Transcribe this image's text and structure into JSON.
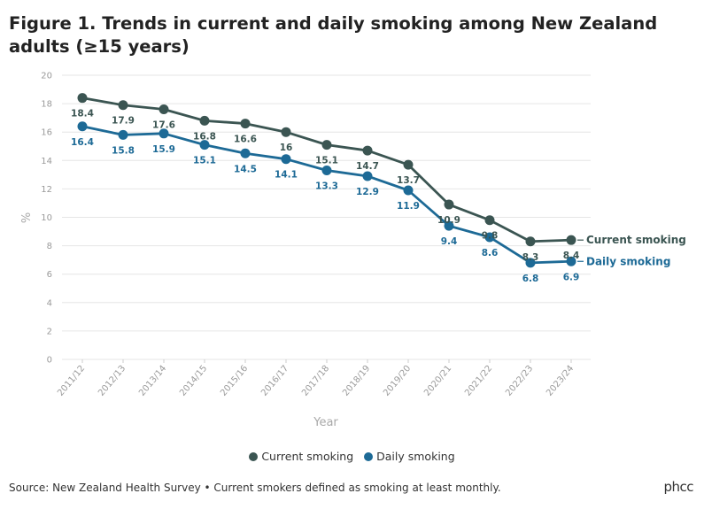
{
  "header": {
    "title": "Figure 1. Trends in current and daily smoking among New Zealand adults (≥15 years)"
  },
  "chart_data": {
    "type": "line",
    "title": "Figure 1. Trends in current and daily smoking among New Zealand adults (≥15 years)",
    "xlabel": "Year",
    "ylabel": "%",
    "ylim": [
      0,
      20
    ],
    "yticks": [
      0,
      2,
      4,
      6,
      8,
      10,
      12,
      14,
      16,
      18,
      20
    ],
    "categories": [
      "2011/12",
      "2012/13",
      "2013/14",
      "2014/15",
      "2015/16",
      "2016/17",
      "2017/18",
      "2018/19",
      "2019/20",
      "2020/21",
      "2021/22",
      "2022/23",
      "2023/24"
    ],
    "grid": true,
    "series": [
      {
        "name": "Current smoking",
        "color": "#3b5552",
        "values": [
          18.4,
          17.9,
          17.6,
          16.8,
          16.6,
          16,
          15.1,
          14.7,
          13.7,
          10.9,
          9.8,
          8.3,
          8.4
        ],
        "labels": [
          "18.4",
          "17.9",
          "17.6",
          "16.8",
          "16.6",
          "16",
          "15.1",
          "14.7",
          "13.7",
          "10.9",
          "9.8",
          "8.3",
          "8.4"
        ]
      },
      {
        "name": "Daily smoking",
        "color": "#1d6a96",
        "values": [
          16.4,
          15.8,
          15.9,
          15.1,
          14.5,
          14.1,
          13.3,
          12.9,
          11.9,
          9.4,
          8.6,
          6.8,
          6.9
        ],
        "labels": [
          "16.4",
          "15.8",
          "15.9",
          "15.1",
          "14.5",
          "14.1",
          "13.3",
          "12.9",
          "11.9",
          "9.4",
          "8.6",
          "6.8",
          "6.9"
        ]
      }
    ]
  },
  "legend": {
    "items": [
      {
        "label": "Current smoking",
        "color": "#3b5552"
      },
      {
        "label": "Daily smoking",
        "color": "#1d6a96"
      }
    ]
  },
  "footer": {
    "source": "Source: New Zealand Health Survey • Current smokers defined as smoking at least monthly.",
    "logo": "phcc"
  }
}
